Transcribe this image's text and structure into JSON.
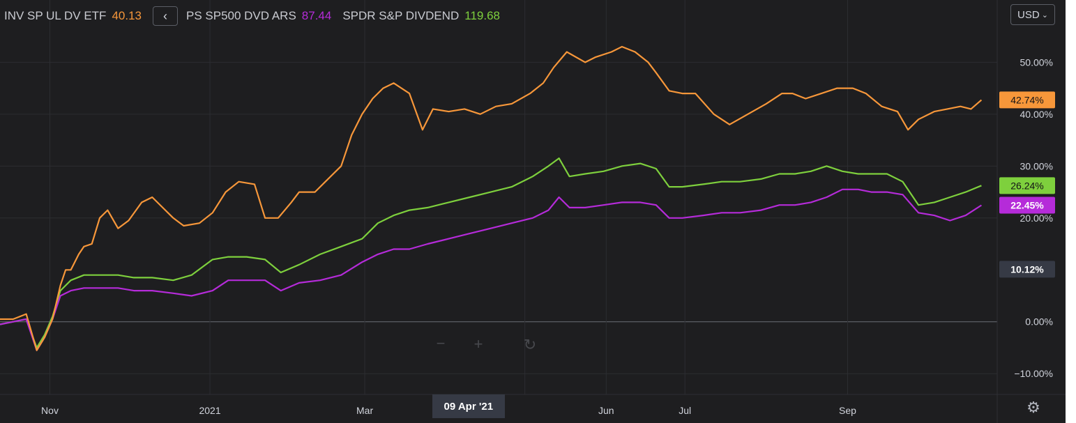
{
  "legend": {
    "collapse_icon": "chevron-left-icon",
    "items": [
      {
        "name": "INV SP UL DV ETF",
        "value": "40.13",
        "color": "#f7973a"
      },
      {
        "name": "PS SP500 DVD ARS",
        "value": "87.44",
        "color": "#b52bd9"
      },
      {
        "name": "SPDR S&P DIVDEND",
        "value": "119.68",
        "color": "#7ed03d"
      }
    ]
  },
  "currency_button": {
    "label": "USD",
    "icon": "chevron-down-icon"
  },
  "settings_icon": "gear-icon",
  "crosshair_date": "09 Apr '21",
  "colors": {
    "background": "#1e1e20",
    "grid": "#2c2d31",
    "zero_line": "#6b6e76",
    "neutral_badge": "#363a45"
  },
  "chart_data": {
    "type": "line",
    "y_unit": "%",
    "ylim": [
      -14,
      62
    ],
    "yticks": [
      -10,
      0,
      20,
      30,
      40,
      50
    ],
    "ytick_labels": [
      "−10.00%",
      "0.00%",
      "20.00%",
      "30.00%",
      "40.00%",
      "50.00%"
    ],
    "x_range": [
      "2020-10-13",
      "2021-10-28"
    ],
    "xticks": [
      {
        "date": "2020-11-01",
        "label": "Nov"
      },
      {
        "date": "2021-01-01",
        "label": "2021"
      },
      {
        "date": "2021-03-01",
        "label": "Mar"
      },
      {
        "date": "2021-05-01",
        "label": ""
      },
      {
        "date": "2021-06-01",
        "label": "Jun"
      },
      {
        "date": "2021-07-01",
        "label": "Jul"
      },
      {
        "date": "2021-09-01",
        "label": "Sep"
      }
    ],
    "grid": true,
    "badges": [
      {
        "value": 42.74,
        "label": "42.74%",
        "series": 0
      },
      {
        "value": 26.24,
        "label": "26.24%",
        "series": 2
      },
      {
        "value": 22.45,
        "label": "22.45%",
        "series": 1
      },
      {
        "value": 10.12,
        "label": "10.12%",
        "series": -1
      }
    ],
    "series": [
      {
        "color": "#f7973a",
        "x": [
          "2020-10-13",
          "2020-10-18",
          "2020-10-23",
          "2020-10-27",
          "2020-10-30",
          "2020-11-02",
          "2020-11-05",
          "2020-11-07",
          "2020-11-09",
          "2020-11-12",
          "2020-11-14",
          "2020-11-17",
          "2020-11-20",
          "2020-11-23",
          "2020-11-27",
          "2020-12-01",
          "2020-12-06",
          "2020-12-10",
          "2020-12-14",
          "2020-12-18",
          "2020-12-22",
          "2020-12-28",
          "2021-01-02",
          "2021-01-07",
          "2021-01-12",
          "2021-01-18",
          "2021-01-22",
          "2021-01-27",
          "2021-02-01",
          "2021-02-04",
          "2021-02-10",
          "2021-02-14",
          "2021-02-20",
          "2021-02-24",
          "2021-02-28",
          "2021-03-04",
          "2021-03-08",
          "2021-03-12",
          "2021-03-18",
          "2021-03-23",
          "2021-03-27",
          "2021-04-02",
          "2021-04-08",
          "2021-04-14",
          "2021-04-20",
          "2021-04-26",
          "2021-05-03",
          "2021-05-08",
          "2021-05-12",
          "2021-05-17",
          "2021-05-24",
          "2021-05-28",
          "2021-06-03",
          "2021-06-07",
          "2021-06-12",
          "2021-06-17",
          "2021-06-20",
          "2021-06-25",
          "2021-06-30",
          "2021-07-05",
          "2021-07-12",
          "2021-07-18",
          "2021-07-25",
          "2021-08-01",
          "2021-08-07",
          "2021-08-11",
          "2021-08-16",
          "2021-08-22",
          "2021-08-28",
          "2021-09-03",
          "2021-09-08",
          "2021-09-14",
          "2021-09-20",
          "2021-09-24",
          "2021-09-28",
          "2021-10-04",
          "2021-10-09",
          "2021-10-14",
          "2021-10-18",
          "2021-10-22"
        ],
        "y": [
          0.5,
          0.5,
          1.5,
          -5.5,
          -3,
          0.5,
          7,
          10,
          10,
          13,
          14.5,
          15,
          20,
          21.5,
          18,
          19.5,
          23,
          24,
          22,
          20,
          18.5,
          19,
          21,
          25,
          27,
          26.5,
          20,
          20,
          23,
          25,
          25,
          27,
          30,
          36,
          40,
          43,
          45,
          46,
          44,
          37,
          41,
          40.5,
          41,
          40,
          41.5,
          42,
          44,
          46,
          49,
          52,
          50,
          51,
          52,
          53,
          52,
          50,
          48,
          44.5,
          44,
          44,
          40,
          38,
          40,
          42,
          44,
          44,
          43,
          44,
          45,
          45,
          44,
          41.5,
          40.5,
          37,
          39,
          40.5,
          41,
          41.5,
          41,
          42.74
        ]
      },
      {
        "color": "#b52bd9",
        "x": [
          "2020-10-13",
          "2020-10-18",
          "2020-10-23",
          "2020-10-27",
          "2020-10-30",
          "2020-11-02",
          "2020-11-05",
          "2020-11-09",
          "2020-11-14",
          "2020-11-20",
          "2020-11-27",
          "2020-12-03",
          "2020-12-10",
          "2020-12-18",
          "2020-12-25",
          "2021-01-02",
          "2021-01-08",
          "2021-01-15",
          "2021-01-22",
          "2021-01-28",
          "2021-02-04",
          "2021-02-12",
          "2021-02-20",
          "2021-02-28",
          "2021-03-06",
          "2021-03-12",
          "2021-03-18",
          "2021-03-25",
          "2021-04-02",
          "2021-04-10",
          "2021-04-18",
          "2021-04-26",
          "2021-05-04",
          "2021-05-10",
          "2021-05-14",
          "2021-05-18",
          "2021-05-24",
          "2021-05-31",
          "2021-06-07",
          "2021-06-14",
          "2021-06-20",
          "2021-06-25",
          "2021-06-30",
          "2021-07-08",
          "2021-07-15",
          "2021-07-22",
          "2021-07-30",
          "2021-08-06",
          "2021-08-12",
          "2021-08-18",
          "2021-08-24",
          "2021-08-30",
          "2021-09-05",
          "2021-09-10",
          "2021-09-16",
          "2021-09-22",
          "2021-09-28",
          "2021-10-04",
          "2021-10-10",
          "2021-10-16",
          "2021-10-22"
        ],
        "y": [
          -0.5,
          0,
          0.5,
          -5.5,
          -3,
          0.5,
          5,
          6,
          6.5,
          6.5,
          6.5,
          6,
          6,
          5.5,
          5,
          6,
          8,
          8,
          8,
          6,
          7.5,
          8,
          9,
          11.5,
          13,
          14,
          14,
          15,
          16,
          17,
          18,
          19,
          20,
          21.5,
          24,
          22,
          22,
          22.5,
          23,
          23,
          22.5,
          20,
          20,
          20.5,
          21,
          21,
          21.5,
          22.5,
          22.5,
          23,
          24,
          25.5,
          25.5,
          25,
          25,
          24.5,
          21,
          20.5,
          19.5,
          20.5,
          22.45
        ]
      },
      {
        "color": "#7ed03d",
        "x": [
          "2020-10-13",
          "2020-10-18",
          "2020-10-23",
          "2020-10-27",
          "2020-10-30",
          "2020-11-02",
          "2020-11-05",
          "2020-11-09",
          "2020-11-14",
          "2020-11-20",
          "2020-11-27",
          "2020-12-03",
          "2020-12-10",
          "2020-12-18",
          "2020-12-25",
          "2021-01-02",
          "2021-01-08",
          "2021-01-15",
          "2021-01-22",
          "2021-01-28",
          "2021-02-04",
          "2021-02-12",
          "2021-02-20",
          "2021-02-28",
          "2021-03-06",
          "2021-03-12",
          "2021-03-18",
          "2021-03-25",
          "2021-04-02",
          "2021-04-10",
          "2021-04-18",
          "2021-04-26",
          "2021-05-04",
          "2021-05-10",
          "2021-05-14",
          "2021-05-18",
          "2021-05-24",
          "2021-05-31",
          "2021-06-07",
          "2021-06-14",
          "2021-06-20",
          "2021-06-25",
          "2021-06-30",
          "2021-07-08",
          "2021-07-15",
          "2021-07-22",
          "2021-07-30",
          "2021-08-06",
          "2021-08-12",
          "2021-08-18",
          "2021-08-24",
          "2021-08-30",
          "2021-09-05",
          "2021-09-10",
          "2021-09-16",
          "2021-09-22",
          "2021-09-28",
          "2021-10-04",
          "2021-10-10",
          "2021-10-16",
          "2021-10-22"
        ],
        "y": [
          -0.5,
          0,
          0.5,
          -5,
          -2.5,
          1,
          6,
          8,
          9,
          9,
          9,
          8.5,
          8.5,
          8,
          9,
          12,
          12.5,
          12.5,
          12,
          9.5,
          11,
          13,
          14.5,
          16,
          19,
          20.5,
          21.5,
          22,
          23,
          24,
          25,
          26,
          28,
          30,
          31.5,
          28,
          28.5,
          29,
          30,
          30.5,
          29.5,
          26,
          26,
          26.5,
          27,
          27,
          27.5,
          28.5,
          28.5,
          29,
          30,
          29,
          28.5,
          28.5,
          28.5,
          27,
          22.5,
          23,
          24,
          25,
          26.24
        ]
      }
    ]
  }
}
